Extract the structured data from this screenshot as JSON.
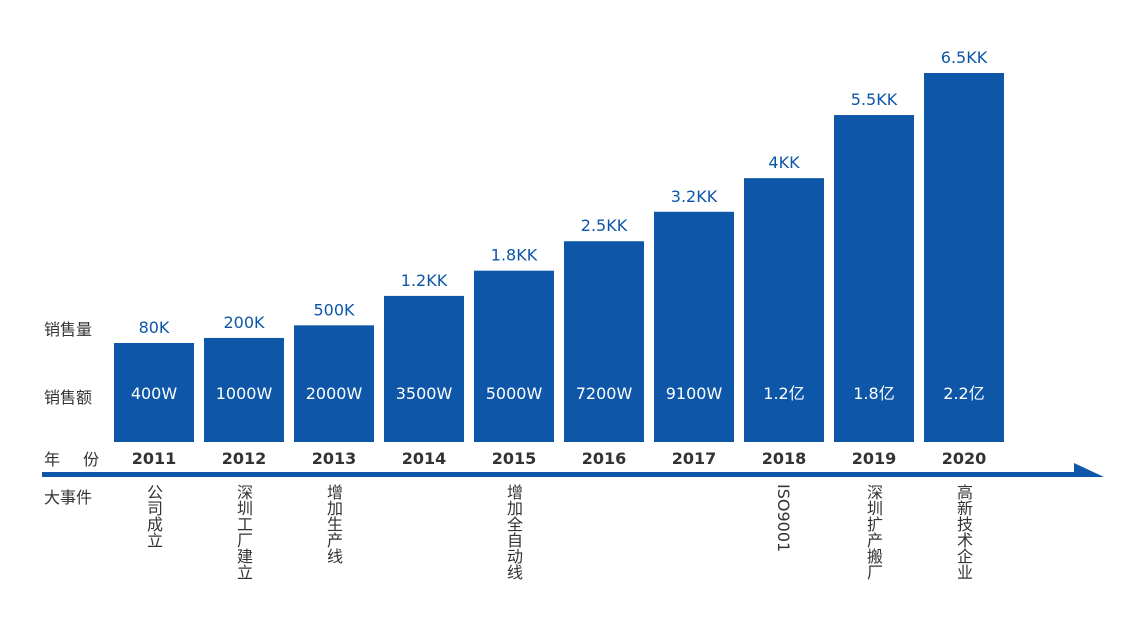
{
  "row_labels": {
    "quantity": "销售量",
    "amount": "销售额",
    "year": "年 份",
    "events": "大事件"
  },
  "chart_data": {
    "type": "bar",
    "categories": [
      "2011",
      "2012",
      "2013",
      "2014",
      "2015",
      "2016",
      "2017",
      "2018",
      "2019",
      "2020"
    ],
    "series": [
      {
        "name": "销售量",
        "values": [
          80000,
          200000,
          500000,
          1200000,
          1800000,
          2500000,
          3200000,
          4000000,
          5500000,
          6500000
        ]
      }
    ],
    "quantity_labels": [
      "80K",
      "200K",
      "500K",
      "1.2KK",
      "1.8KK",
      "2.5KK",
      "3.2KK",
      "4KK",
      "5.5KK",
      "6.5KK"
    ],
    "amount_labels": [
      "400W",
      "1000W",
      "2000W",
      "3500W",
      "5000W",
      "7200W",
      "9100W",
      "1.2亿",
      "1.8亿",
      "2.2亿"
    ],
    "events": [
      "公司成立",
      "深圳工厂建立",
      "增加生产线",
      "",
      "增加全自动线",
      "",
      "",
      "ISO9001",
      "深圳扩产搬厂",
      "高新技术企业"
    ],
    "colors": {
      "bar": "#0d56a8",
      "axis": "#0d56a8",
      "qty_text": "#0d56a8"
    }
  }
}
